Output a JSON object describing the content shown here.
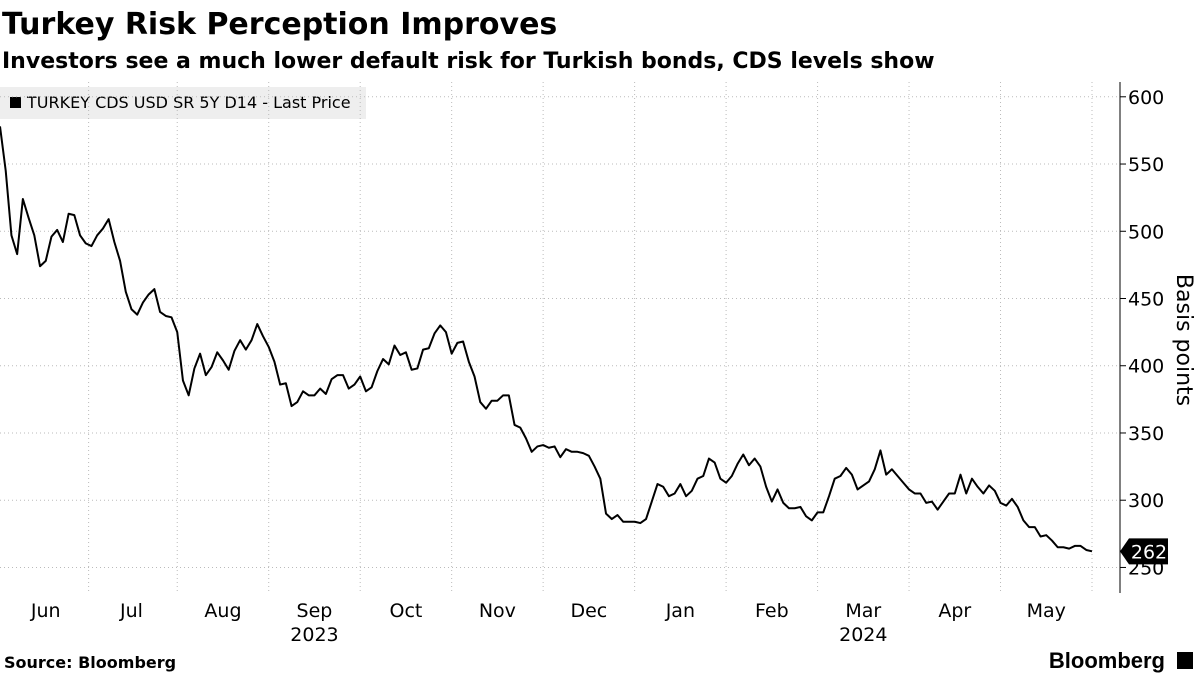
{
  "chart_data": {
    "type": "line",
    "title": "Turkey Risk Perception Improves",
    "subtitle": "Investors see a much lower default risk for Turkish bonds, CDS levels show",
    "y_axis_label": "Basis points",
    "source": "Source: Bloomberg",
    "brand": "Bloomberg",
    "years": [
      "2023",
      "2024"
    ],
    "categories": [
      null,
      null,
      null,
      null,
      null,
      null,
      null,
      null,
      "Jun",
      null,
      null,
      null,
      null,
      null,
      null,
      null,
      null,
      null,
      null,
      null,
      null,
      null,
      null,
      "Jul",
      null,
      null,
      null,
      null,
      null,
      null,
      null,
      null,
      null,
      null,
      null,
      null,
      null,
      null,
      null,
      "Aug",
      null,
      null,
      null,
      null,
      null,
      null,
      null,
      null,
      null,
      null,
      null,
      null,
      null,
      null,
      null,
      "Sep",
      null,
      null,
      null,
      null,
      null,
      null,
      null,
      null,
      null,
      null,
      null,
      null,
      null,
      null,
      null,
      "Oct",
      null,
      null,
      null,
      null,
      null,
      null,
      null,
      null,
      null,
      null,
      null,
      null,
      null,
      null,
      null,
      "Nov",
      null,
      null,
      null,
      null,
      null,
      null,
      null,
      null,
      null,
      null,
      null,
      null,
      null,
      null,
      null,
      "Dec",
      null,
      null,
      null,
      null,
      null,
      null,
      null,
      null,
      null,
      null,
      null,
      null,
      null,
      null,
      null,
      "Jan",
      null,
      null,
      null,
      null,
      null,
      null,
      null,
      null,
      null,
      null,
      null,
      null,
      null,
      null,
      null,
      "Feb",
      null,
      null,
      null,
      null,
      null,
      null,
      null,
      null,
      null,
      null,
      null,
      null,
      null,
      null,
      null,
      "Mar",
      null,
      null,
      null,
      null,
      null,
      null,
      null,
      null,
      null,
      null,
      null,
      null,
      null,
      null,
      null,
      "Apr",
      null,
      null,
      null,
      null,
      null,
      null,
      null,
      null,
      null,
      null,
      null,
      null,
      null,
      null,
      null,
      "May",
      null,
      null,
      null,
      null,
      null,
      null,
      null,
      null
    ],
    "series": [
      {
        "name": "TURKEY CDS USD SR 5Y D14 - Last Price",
        "color": "#000000",
        "values": [
          578,
          545,
          497,
          483,
          524,
          510,
          497,
          474,
          478,
          496,
          501,
          492,
          513,
          512,
          497,
          491,
          489,
          497,
          502,
          509,
          492,
          478,
          455,
          442,
          438,
          447,
          453,
          457,
          440,
          437,
          436,
          425,
          389,
          378,
          398,
          409,
          393,
          399,
          410,
          404,
          397,
          411,
          419,
          412,
          419,
          431,
          422,
          414,
          403,
          386,
          387,
          370,
          373,
          381,
          378,
          378,
          383,
          379,
          390,
          393,
          393,
          383,
          386,
          392,
          381,
          384,
          396,
          405,
          401,
          415,
          408,
          410,
          397,
          398,
          412,
          413,
          424,
          430,
          425,
          409,
          417,
          418,
          403,
          392,
          373,
          368,
          374,
          374,
          378,
          378,
          356,
          354,
          346,
          336,
          340,
          341,
          339,
          340,
          332,
          338,
          336,
          336,
          335,
          333,
          325,
          316,
          290,
          286,
          289,
          284,
          284,
          284,
          283,
          286,
          299,
          312,
          310,
          303,
          305,
          312,
          303,
          307,
          316,
          318,
          331,
          328,
          316,
          313,
          318,
          327,
          334,
          326,
          331,
          325,
          310,
          299,
          308,
          298,
          294,
          294,
          295,
          288,
          285,
          291,
          291,
          303,
          316,
          318,
          324,
          319,
          308,
          311,
          314,
          323,
          337,
          319,
          323,
          318,
          313,
          308,
          305,
          305,
          298,
          299,
          293,
          299,
          305,
          305,
          319,
          305,
          316,
          310,
          305,
          311,
          307,
          298,
          296,
          301,
          295,
          285,
          280,
          280,
          273,
          274,
          270,
          265,
          265,
          264,
          266,
          266,
          263,
          262
        ]
      }
    ],
    "ylim": [
      231,
      611
    ],
    "yticks": [
      250,
      300,
      350,
      400,
      450,
      500,
      550,
      600
    ],
    "grid": true
  }
}
